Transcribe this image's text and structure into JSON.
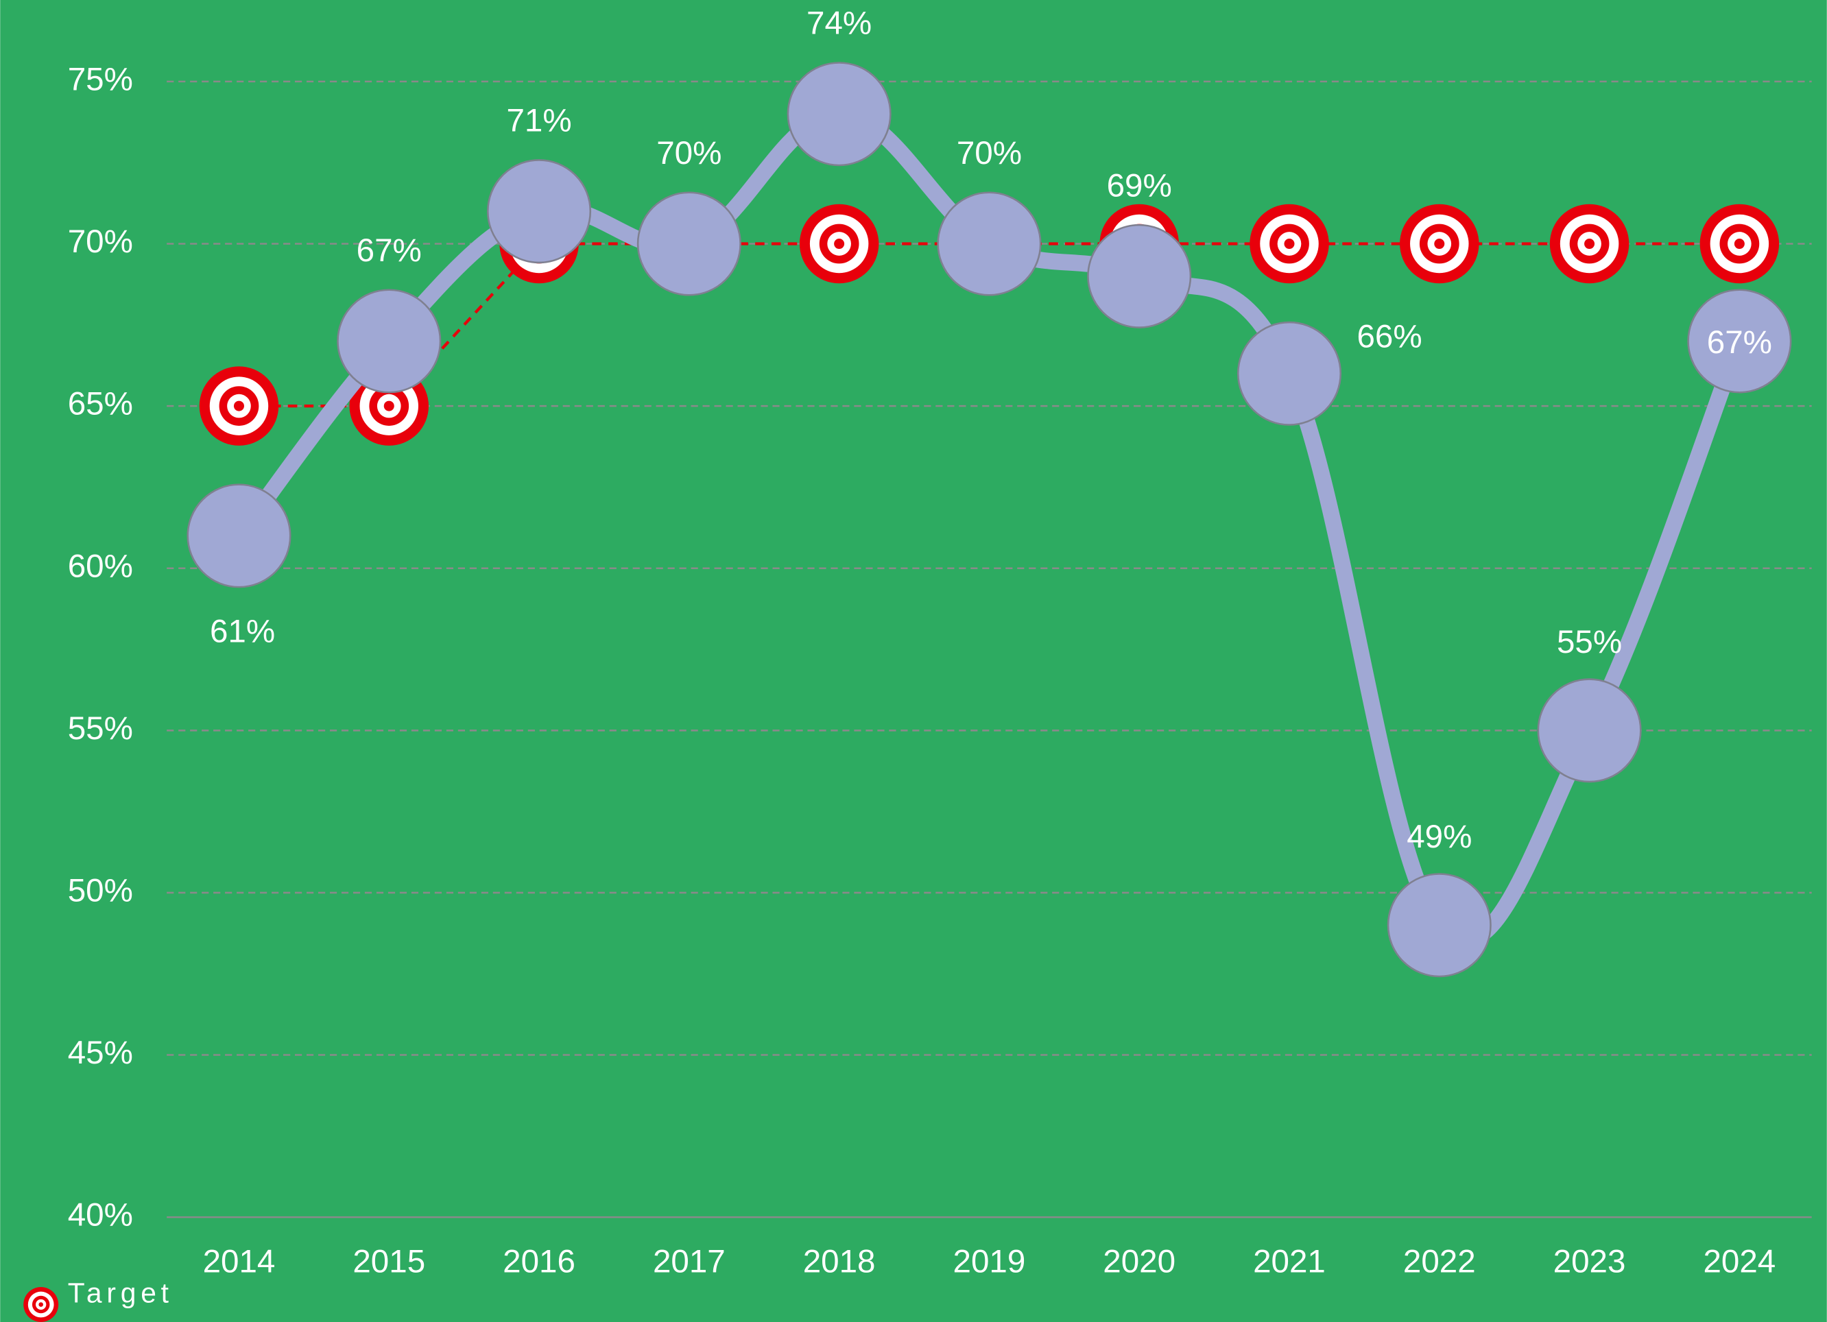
{
  "chart_data": {
    "type": "line",
    "categories": [
      "2014",
      "2015",
      "2016",
      "2017",
      "2018",
      "2019",
      "2020",
      "2021",
      "2022",
      "2023",
      "2024"
    ],
    "series": [
      {
        "color": "#a0a8d4",
        "smooth": true,
        "values": [
          61,
          67,
          71,
          70,
          74,
          70,
          69,
          66,
          49,
          55,
          67
        ],
        "value_labels": [
          "61%",
          "67%",
          "71%",
          "70%",
          "74%",
          "70%",
          "69%",
          "66%",
          "49%",
          "55%",
          "67%"
        ]
      },
      {
        "name": "Target",
        "color": "#e8000b",
        "dashed": true,
        "values": [
          65,
          65,
          70,
          70,
          70,
          70,
          70,
          70,
          70,
          70,
          70
        ]
      }
    ],
    "ylim": [
      40,
      75
    ],
    "yticks": [
      {
        "value": 40,
        "label": "40%"
      },
      {
        "value": 45,
        "label": "45%"
      },
      {
        "value": 50,
        "label": "50%"
      },
      {
        "value": 55,
        "label": "55%"
      },
      {
        "value": 60,
        "label": "60%"
      },
      {
        "value": 65,
        "label": "65%"
      },
      {
        "value": 70,
        "label": "70%"
      },
      {
        "value": 75,
        "label": "75%"
      }
    ],
    "grid": true,
    "legend": "bottom-left",
    "background": "#2dab61"
  }
}
